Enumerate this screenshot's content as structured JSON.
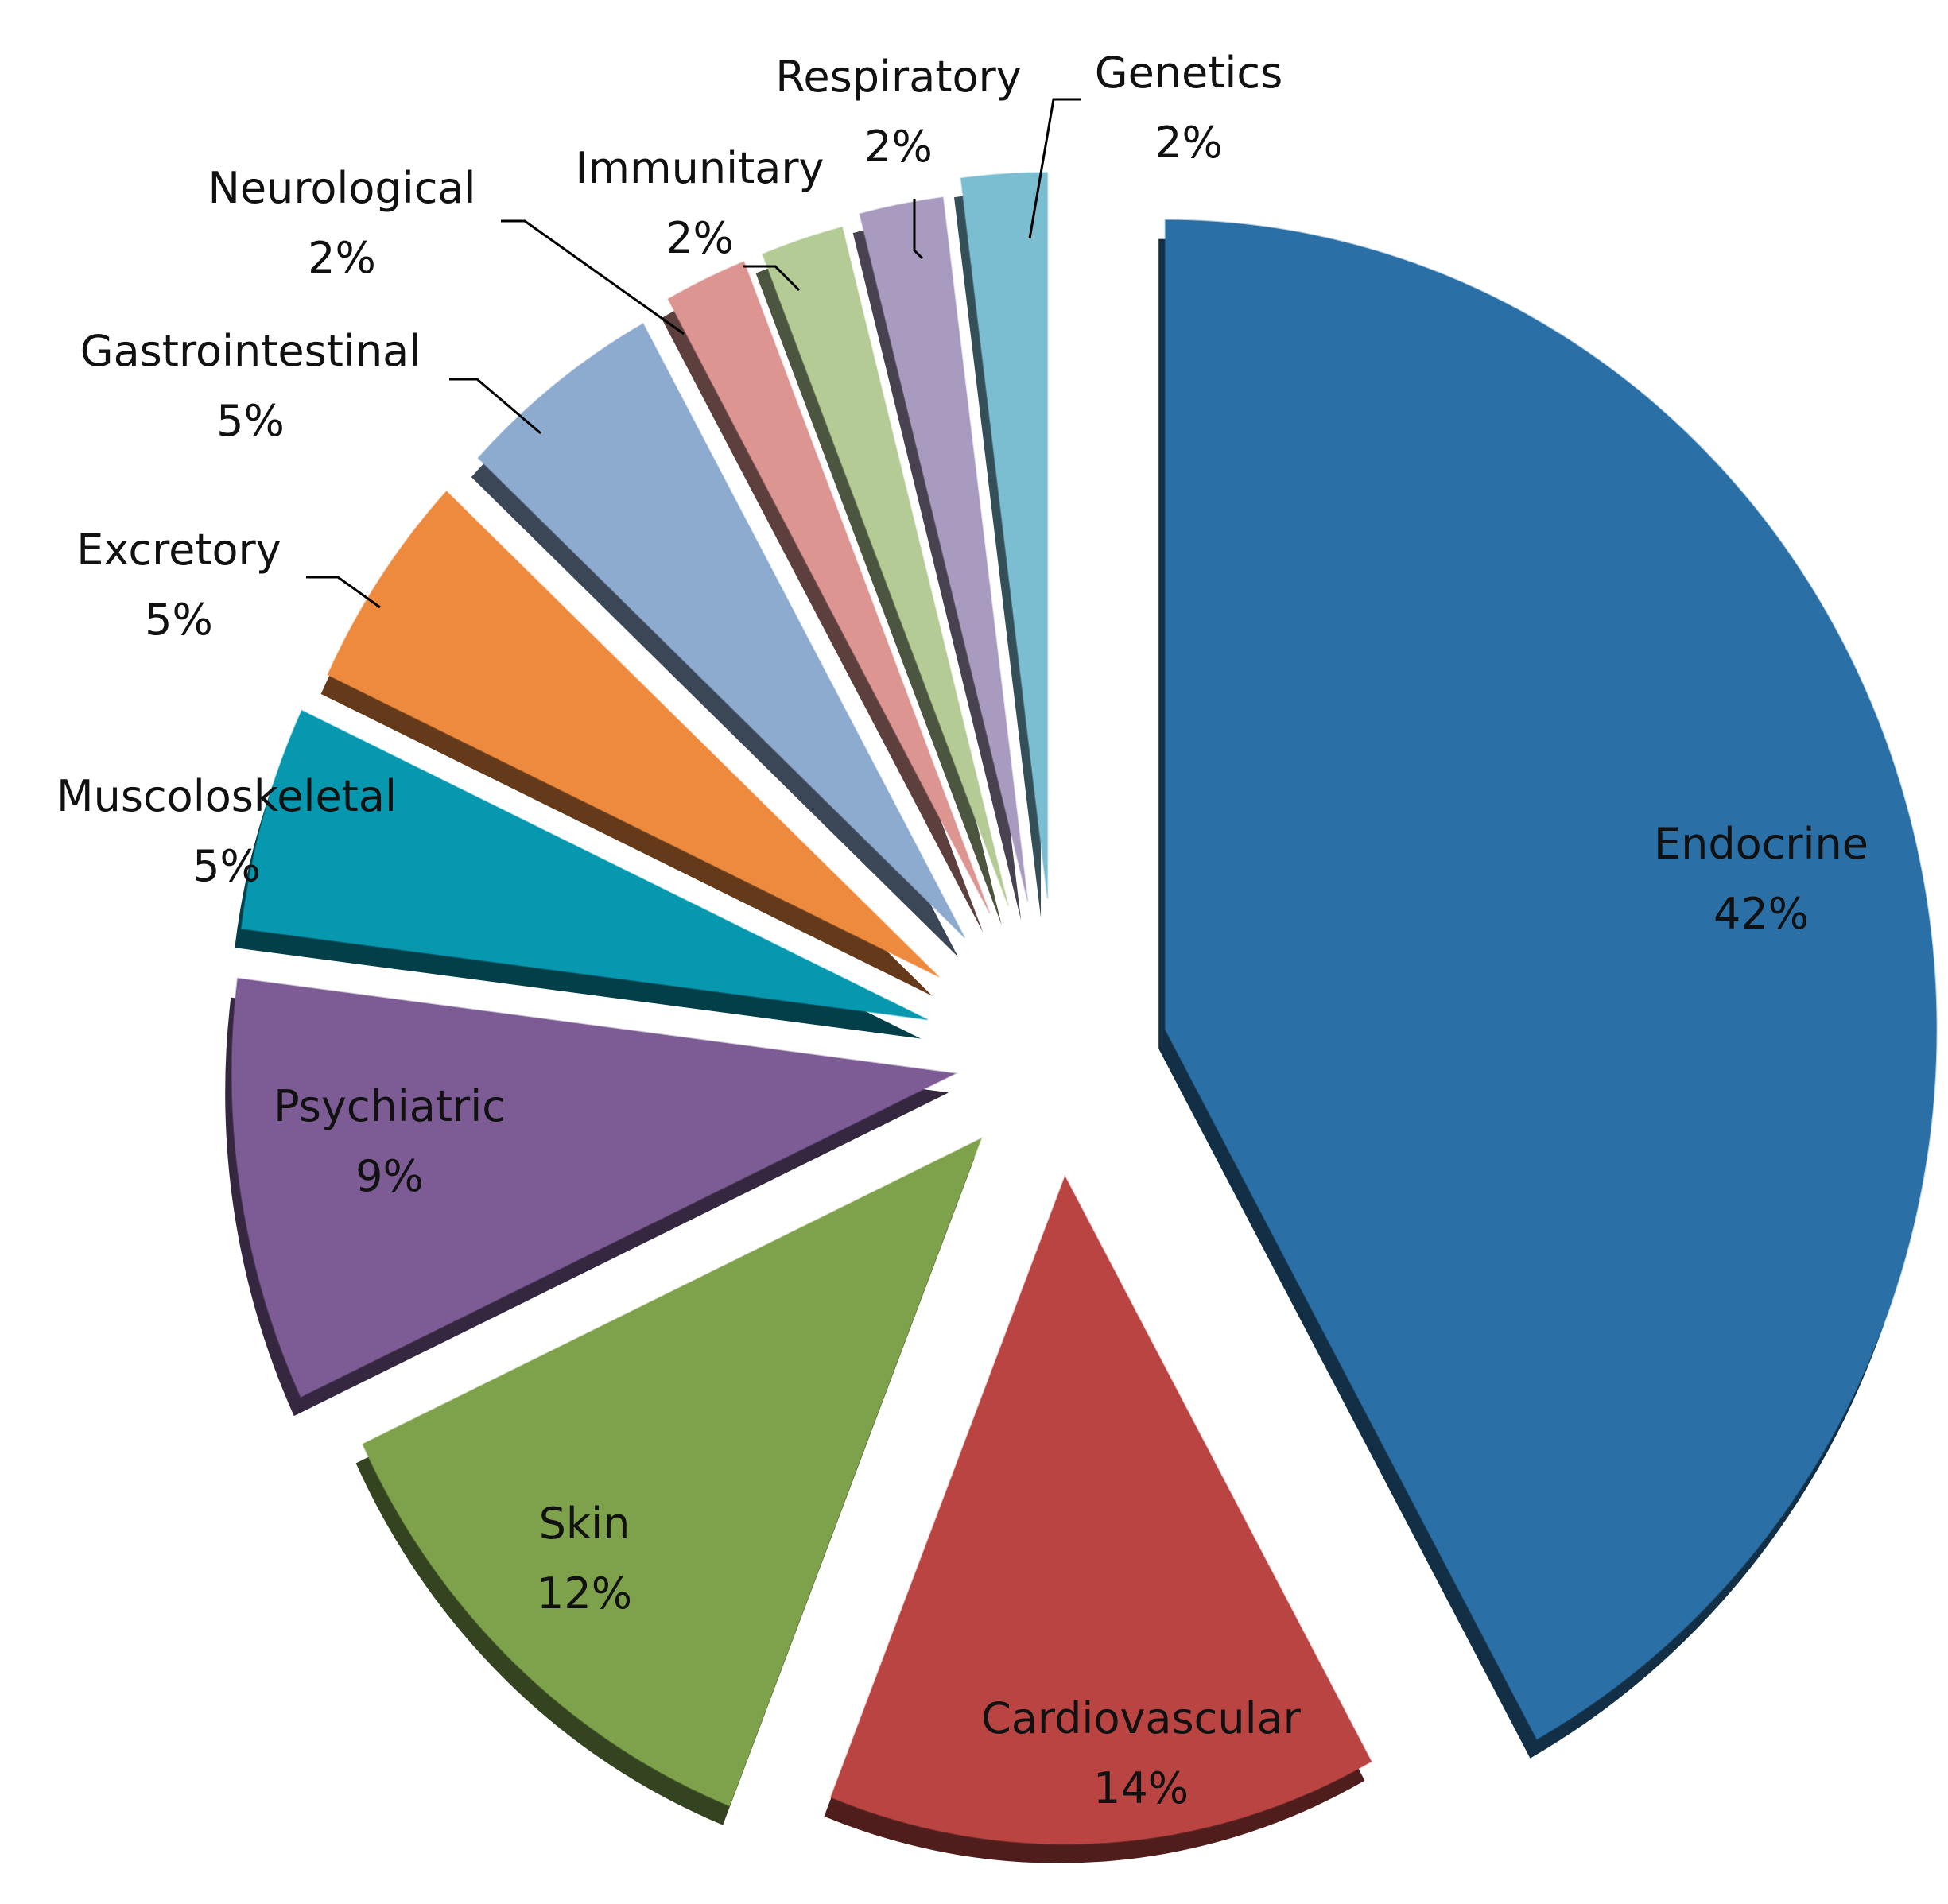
{
  "chart_data": {
    "type": "pie",
    "title": "",
    "exploded": true,
    "three_d": true,
    "slices": [
      {
        "label": "Endocrine",
        "value": 42,
        "value_label": "42%",
        "color": "#2A6FA6"
      },
      {
        "label": "Cardiovascular",
        "value": 14,
        "value_label": "14%",
        "color": "#B94442"
      },
      {
        "label": "Skin",
        "value": 12,
        "value_label": "12%",
        "color": "#7EA24B"
      },
      {
        "label": "Psychiatric",
        "value": 9,
        "value_label": "9%",
        "color": "#7D5C95"
      },
      {
        "label": "Muscoloskeletal",
        "value": 5,
        "value_label": "5%",
        "color": "#0797AE"
      },
      {
        "label": "Excretory",
        "value": 5,
        "value_label": "5%",
        "color": "#EE8A3E"
      },
      {
        "label": "Gastrointestinal",
        "value": 5,
        "value_label": "5%",
        "color": "#8DAACF"
      },
      {
        "label": "Neurological",
        "value": 2,
        "value_label": "2%",
        "color": "#DD9592"
      },
      {
        "label": "Immunitary",
        "value": 2,
        "value_label": "2%",
        "color": "#B4CB95"
      },
      {
        "label": "Respiratory",
        "value": 2,
        "value_label": "2%",
        "color": "#A99BBF"
      },
      {
        "label": "Genetics",
        "value": 2,
        "value_label": "2%",
        "color": "#7BBDD1"
      }
    ]
  }
}
